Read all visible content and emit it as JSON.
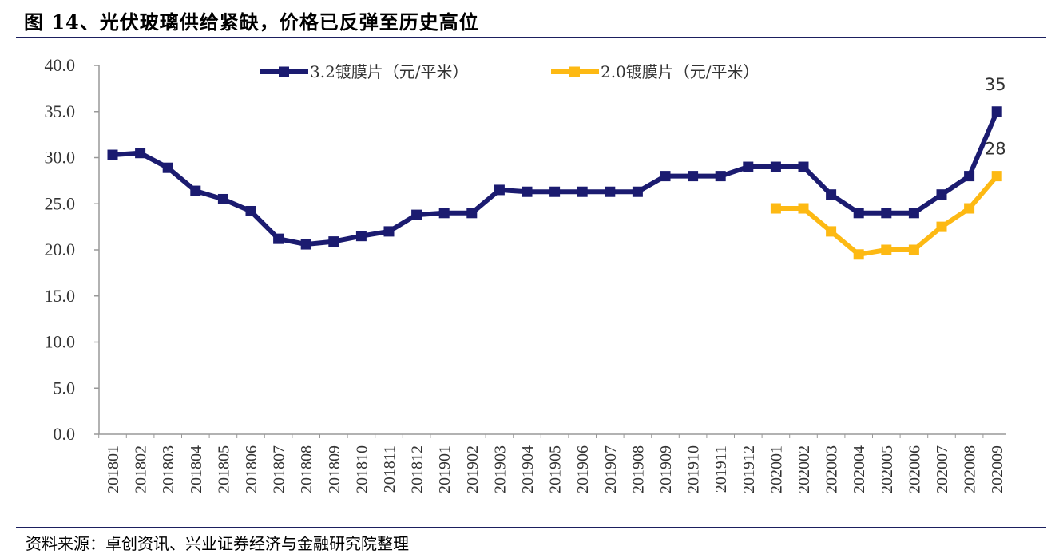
{
  "title": "图 14、光伏玻璃供给紧缺，价格已反弹至历史高位",
  "source": "资料来源：卓创资讯、兴业证券经济与金融研究院整理",
  "colors": {
    "series1": "#1b1b70",
    "series2": "#fdb913",
    "rule": "#1b1f5e"
  },
  "chart_data": {
    "type": "line",
    "title": "图 14、光伏玻璃供给紧缺，价格已反弹至历史高位",
    "xlabel": "",
    "ylabel": "",
    "ylim": [
      0,
      40
    ],
    "yticks": [
      "0.0",
      "5.0",
      "10.0",
      "15.0",
      "20.0",
      "25.0",
      "30.0",
      "35.0",
      "40.0"
    ],
    "grid": false,
    "legend": "top-center",
    "categories": [
      "201801",
      "201802",
      "201803",
      "201804",
      "201805",
      "201806",
      "201807",
      "201808",
      "201809",
      "201810",
      "201811",
      "201812",
      "201901",
      "201902",
      "201903",
      "201904",
      "201905",
      "201906",
      "201907",
      "201908",
      "201909",
      "201910",
      "201911",
      "201912",
      "202001",
      "202002",
      "202003",
      "202004",
      "202005",
      "202006",
      "202007",
      "202008",
      "202009"
    ],
    "series": [
      {
        "name": "3.2镀膜片（元/平米）",
        "values": [
          30.3,
          30.5,
          28.9,
          26.4,
          25.5,
          24.2,
          21.2,
          20.6,
          20.9,
          21.5,
          22.0,
          23.8,
          24.0,
          24.0,
          26.5,
          26.3,
          26.3,
          26.3,
          26.3,
          26.3,
          28.0,
          28.0,
          28.0,
          29.0,
          29.0,
          29.0,
          26.0,
          24.0,
          24.0,
          24.0,
          26.0,
          28.0,
          35.0
        ],
        "end_label": "35"
      },
      {
        "name": "2.0镀膜片（元/平米）",
        "values": [
          null,
          null,
          null,
          null,
          null,
          null,
          null,
          null,
          null,
          null,
          null,
          null,
          null,
          null,
          null,
          null,
          null,
          null,
          null,
          null,
          null,
          null,
          null,
          null,
          24.5,
          24.5,
          22.0,
          19.5,
          20.0,
          20.0,
          22.5,
          24.5,
          28.0
        ],
        "end_label": "28"
      }
    ]
  }
}
